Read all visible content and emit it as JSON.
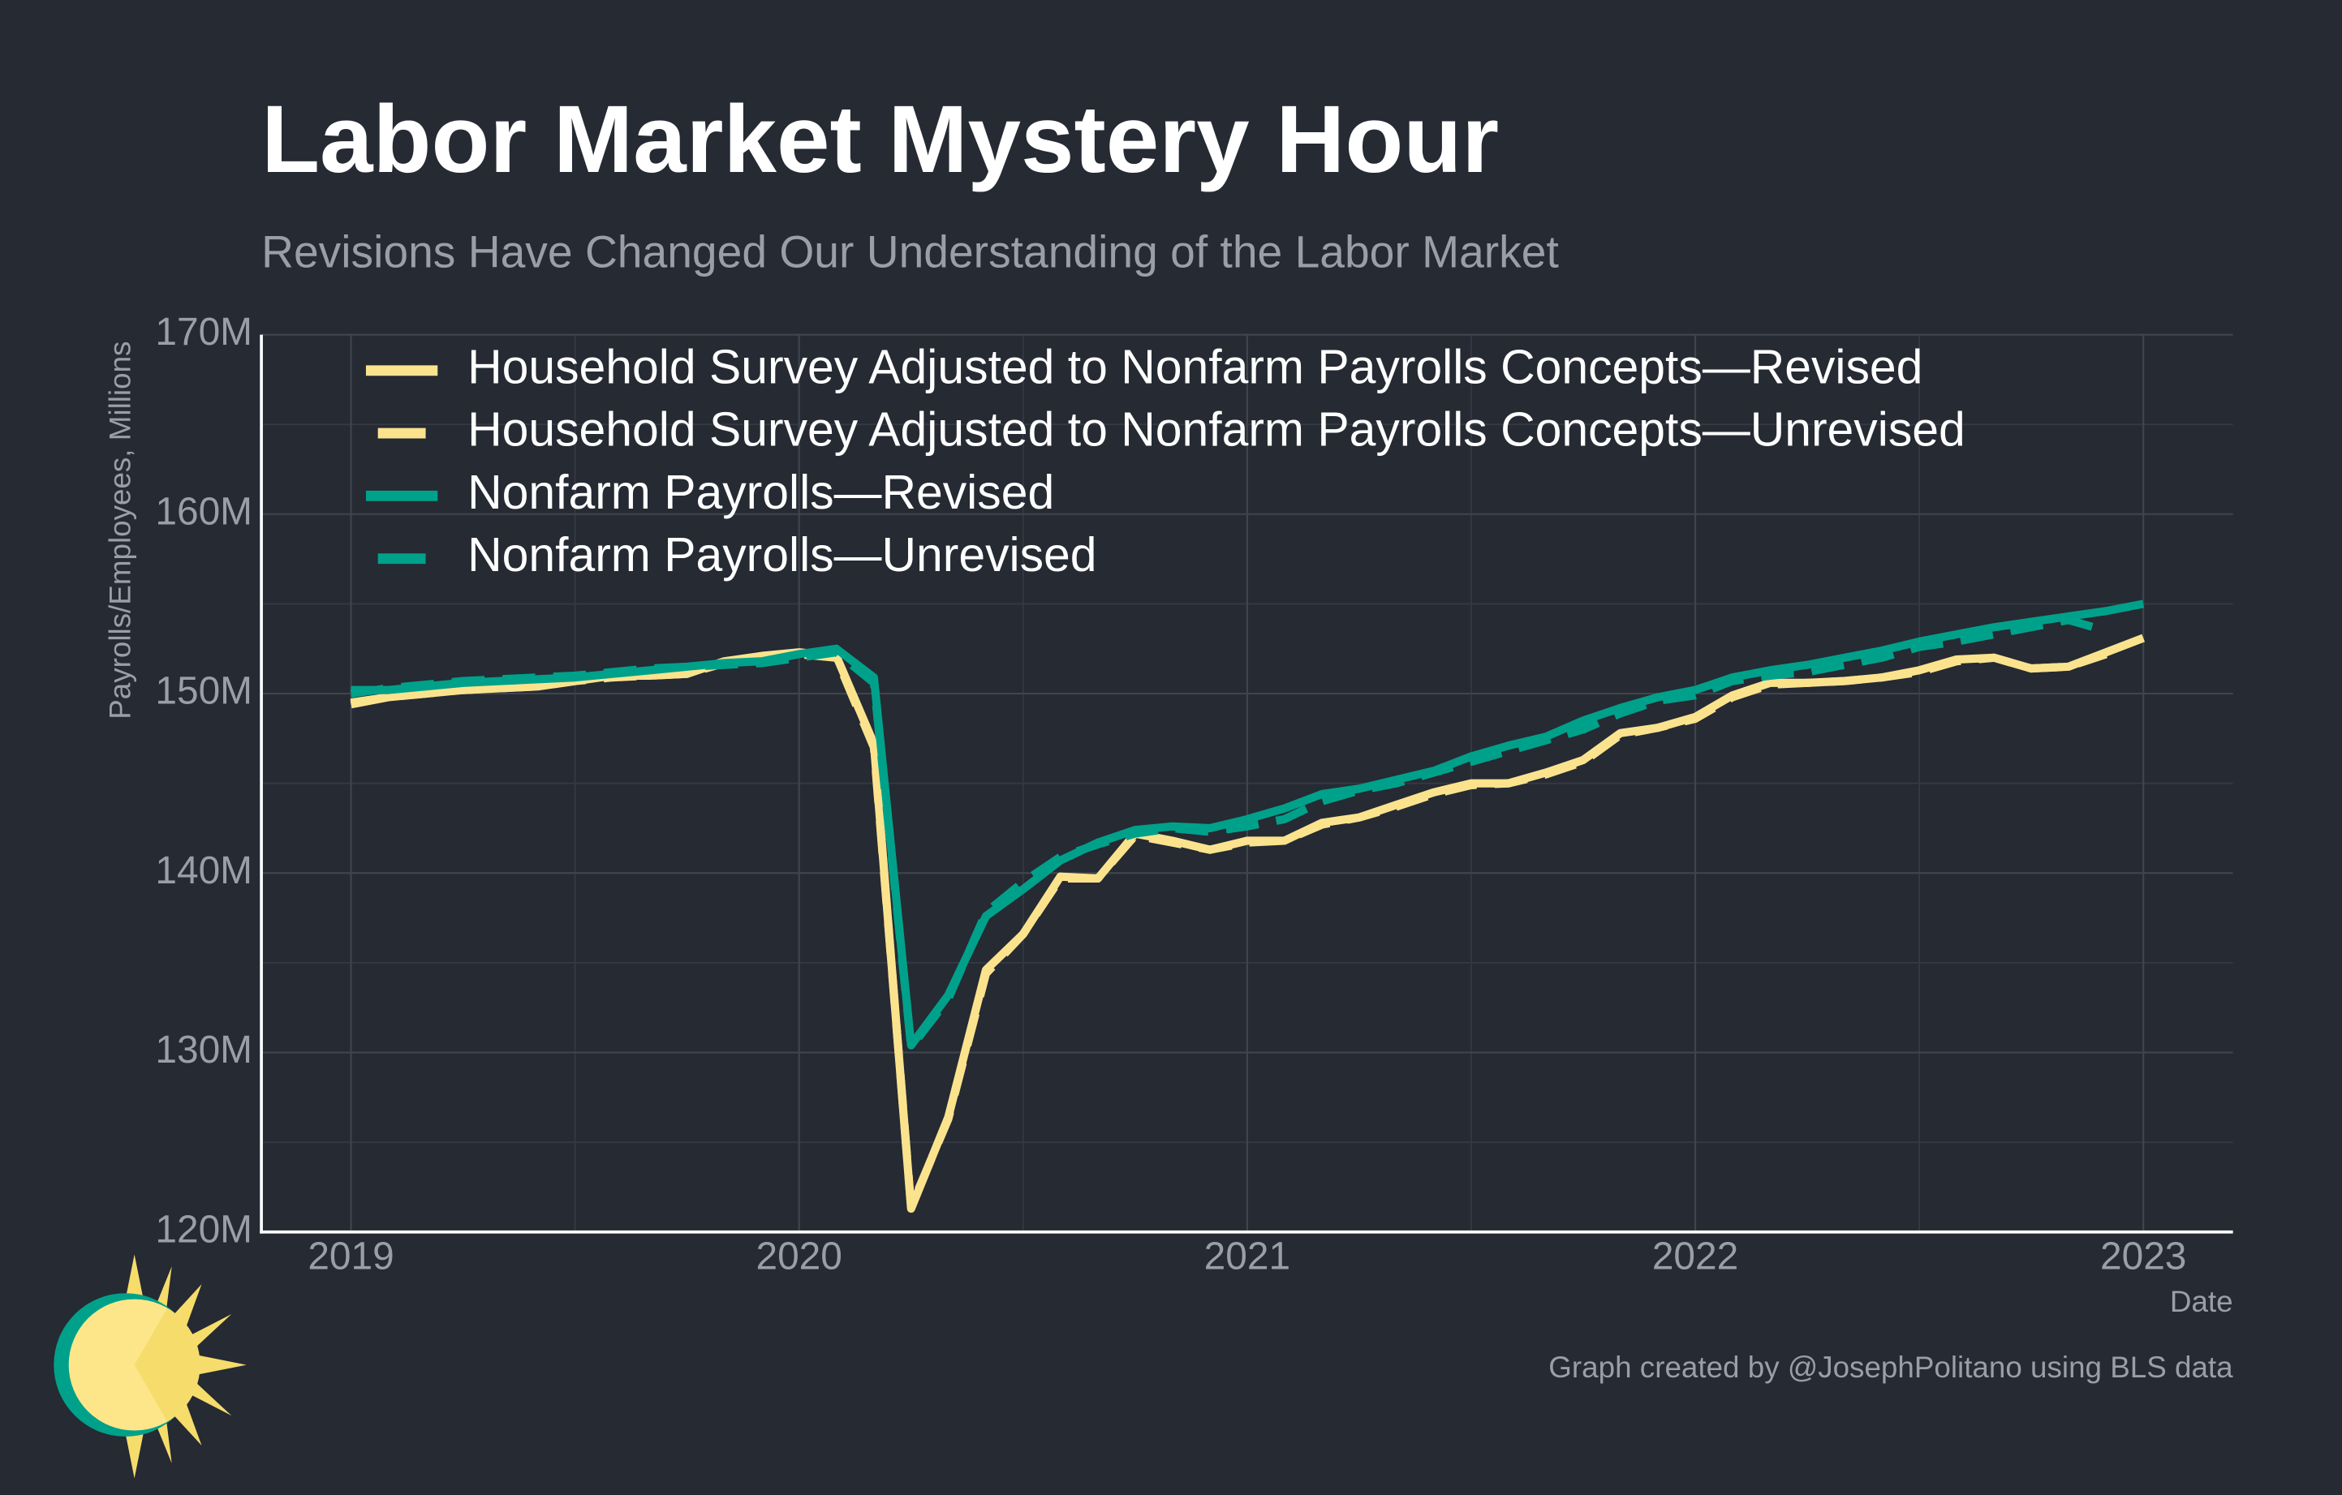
{
  "chart_data": {
    "type": "line",
    "title": "Labor Market Mystery Hour",
    "subtitle": "Revisions Have Changed Our Understanding of the Labor Market",
    "y_label": "Payrolls/Employees, Millions",
    "x_label": "Date",
    "caption": "Graph created by @JosephPolitano using BLS data",
    "x": [
      2019,
      2019.083,
      2019.167,
      2019.25,
      2019.333,
      2019.417,
      2019.5,
      2019.583,
      2019.667,
      2019.75,
      2019.833,
      2019.917,
      2020,
      2020.083,
      2020.167,
      2020.25,
      2020.333,
      2020.417,
      2020.5,
      2020.583,
      2020.667,
      2020.75,
      2020.833,
      2020.917,
      2021,
      2021.083,
      2021.167,
      2021.25,
      2021.333,
      2021.417,
      2021.5,
      2021.583,
      2021.667,
      2021.75,
      2021.833,
      2021.917,
      2022,
      2022.083,
      2022.167,
      2022.25,
      2022.333,
      2022.417,
      2022.5,
      2022.583,
      2022.667,
      2022.75,
      2022.833,
      2022.917,
      2023
    ],
    "series": [
      {
        "name": "Household Survey Adjusted to Nonfarm Payrolls Concepts—Revised",
        "color": "#fbe38e",
        "style": "solid",
        "values": [
          149.4,
          149.8,
          150.0,
          150.2,
          150.3,
          150.4,
          150.7,
          151.0,
          151.0,
          151.1,
          151.8,
          152.1,
          152.3,
          152.1,
          147.2,
          121.3,
          126.4,
          134.6,
          136.6,
          139.8,
          139.7,
          142.2,
          141.8,
          141.3,
          141.8,
          141.8,
          142.8,
          143.1,
          143.8,
          144.5,
          145.0,
          145.0,
          145.6,
          146.3,
          147.8,
          148.1,
          148.7,
          149.9,
          150.6,
          150.6,
          150.7,
          150.9,
          151.3,
          151.9,
          152.0,
          151.4,
          151.5,
          152.3,
          153.1
        ]
      },
      {
        "name": "Household Survey Adjusted to Nonfarm Payrolls Concepts—Unrevised",
        "color": "#fbe38e",
        "style": "dashed",
        "values": [
          149.5,
          149.8,
          150.0,
          150.2,
          150.3,
          150.4,
          150.7,
          150.9,
          151.0,
          151.1,
          151.7,
          152.0,
          152.2,
          152.0,
          147.0,
          121.4,
          126.3,
          134.4,
          136.6,
          139.7,
          139.7,
          142.1,
          141.7,
          141.3,
          141.7,
          141.8,
          142.7,
          143.1,
          143.7,
          144.4,
          144.9,
          145.0,
          145.5,
          146.2,
          147.7,
          148.1,
          148.6,
          149.8,
          150.5,
          150.6,
          150.7,
          150.9,
          151.2,
          151.8,
          152.0,
          151.4,
          151.5,
          152.2,
          null
        ]
      },
      {
        "name": "Nonfarm Payrolls—Revised",
        "color": "#00a18a",
        "style": "solid",
        "values": [
          150.2,
          150.2,
          150.4,
          150.6,
          150.7,
          150.8,
          150.9,
          151.1,
          151.3,
          151.5,
          151.7,
          151.8,
          152.2,
          152.5,
          150.9,
          130.4,
          133.2,
          137.6,
          139.1,
          140.7,
          141.7,
          142.4,
          142.6,
          142.5,
          143.0,
          143.6,
          144.4,
          144.7,
          145.2,
          145.7,
          146.5,
          147.1,
          147.6,
          148.5,
          149.2,
          149.8,
          150.2,
          150.9,
          151.3,
          151.6,
          152.0,
          152.4,
          152.9,
          153.3,
          153.7,
          154.0,
          154.3,
          154.6,
          155.0
        ]
      },
      {
        "name": "Nonfarm Payrolls—Unrevised",
        "color": "#00a18a",
        "style": "dashed",
        "values": [
          150.0,
          150.3,
          150.5,
          150.7,
          150.8,
          150.9,
          151.0,
          151.2,
          151.4,
          151.5,
          151.6,
          151.7,
          152.0,
          152.3,
          150.6,
          130.3,
          133.0,
          137.8,
          139.5,
          140.9,
          141.6,
          142.2,
          142.5,
          142.3,
          142.6,
          143.0,
          144.0,
          144.6,
          145.0,
          145.6,
          146.2,
          146.8,
          147.4,
          148.0,
          148.9,
          149.6,
          149.9,
          150.7,
          151.0,
          151.2,
          151.6,
          152.0,
          152.6,
          152.9,
          153.3,
          153.7,
          154.1,
          153.5,
          null
        ]
      }
    ],
    "xlim": [
      2018.8,
      2023.2
    ],
    "xticks": [
      2019,
      2020,
      2021,
      2022,
      2023
    ],
    "ylim": [
      120,
      170
    ],
    "yticks": [
      {
        "value": 120,
        "label": "120M"
      },
      {
        "value": 130,
        "label": "130M"
      },
      {
        "value": 140,
        "label": "140M"
      },
      {
        "value": 150,
        "label": "150M"
      },
      {
        "value": 160,
        "label": "160M"
      },
      {
        "value": 170,
        "label": "170M"
      }
    ],
    "grid": true,
    "legend": "top-left"
  }
}
